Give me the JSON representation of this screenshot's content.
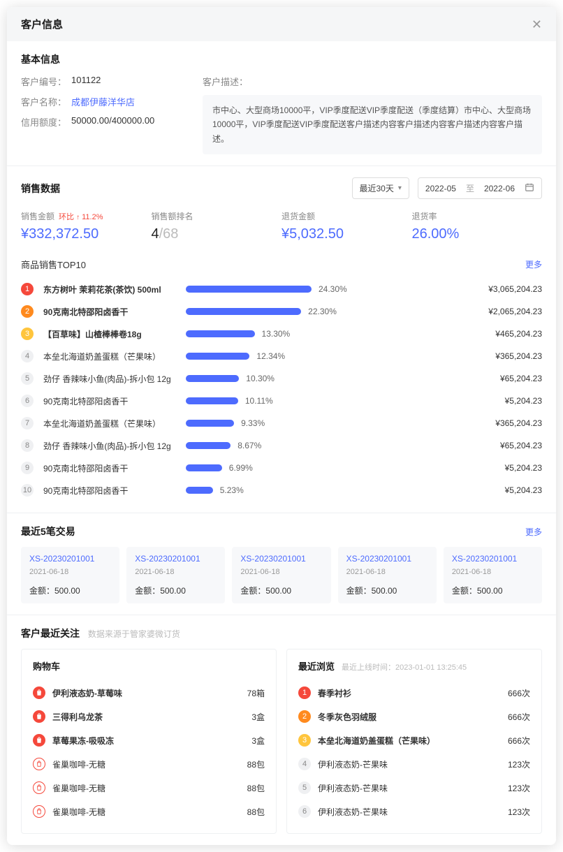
{
  "modal": {
    "title": "客户信息"
  },
  "basic": {
    "title": "基本信息",
    "labels": {
      "id": "客户编号：",
      "name": "客户名称：",
      "credit": "信用额度：",
      "desc": "客户描述："
    },
    "id": "101122",
    "name": "成都伊藤洋华店",
    "credit": "50000.00/400000.00",
    "description": "市中心、大型商场10000平，VIP季度配送VIP季度配送（季度结算）市中心、大型商场10000平，VIP季度配送VIP季度配送客户描述内容客户描述内容客户描述内容客户描述。"
  },
  "sales": {
    "title": "销售数据",
    "period_select": "最近30天",
    "date_from": "2022-05",
    "date_to": "2022-06",
    "date_sep": "至",
    "stats": [
      {
        "label": "销售金额",
        "delta_label": "环比",
        "delta": "11.2%",
        "value": "¥332,372.50",
        "type": "blue"
      },
      {
        "label": "销售额排名",
        "rank": "4",
        "rank_total": "/68",
        "type": "rank"
      },
      {
        "label": "退货金额",
        "value": "¥5,032.50",
        "type": "blue"
      },
      {
        "label": "退货率",
        "value": "26.00%",
        "type": "blue"
      }
    ],
    "top10": {
      "title": "商品销售TOP10",
      "more": "更多",
      "bar_color": "#4d6bfe",
      "max_pct": 24.3,
      "items": [
        {
          "rank": 1,
          "name": "东方树叶 茉莉花茶(茶饮) 500ml",
          "pct": "24.30%",
          "pct_val": 24.3,
          "amount": "¥3,065,204.23",
          "bold": true
        },
        {
          "rank": 2,
          "name": "90克南北特邵阳卤香干",
          "pct": "22.30%",
          "pct_val": 22.3,
          "amount": "¥2,065,204.23",
          "bold": true
        },
        {
          "rank": 3,
          "name": "【百草味】山楂棒棒卷18g",
          "pct": "13.30%",
          "pct_val": 13.3,
          "amount": "¥465,204.23",
          "bold": true
        },
        {
          "rank": 4,
          "name": "本垒北海道奶盖蛋糕（芒果味）",
          "pct": "12.34%",
          "pct_val": 12.34,
          "amount": "¥365,204.23"
        },
        {
          "rank": 5,
          "name": "劲仔 香辣味小鱼(肉品)-拆小包 12g",
          "pct": "10.30%",
          "pct_val": 10.3,
          "amount": "¥65,204.23"
        },
        {
          "rank": 6,
          "name": "90克南北特邵阳卤香干",
          "pct": "10.11%",
          "pct_val": 10.11,
          "amount": "¥5,204.23"
        },
        {
          "rank": 7,
          "name": "本垒北海道奶盖蛋糕（芒果味）",
          "pct": "9.33%",
          "pct_val": 9.33,
          "amount": "¥365,204.23"
        },
        {
          "rank": 8,
          "name": "劲仔 香辣味小鱼(肉品)-拆小包 12g",
          "pct": "8.67%",
          "pct_val": 8.67,
          "amount": "¥65,204.23"
        },
        {
          "rank": 9,
          "name": "90克南北特邵阳卤香干",
          "pct": "6.99%",
          "pct_val": 6.99,
          "amount": "¥5,204.23"
        },
        {
          "rank": 10,
          "name": "90克南北特邵阳卤香干",
          "pct": "5.23%",
          "pct_val": 5.23,
          "amount": "¥5,204.23"
        }
      ]
    }
  },
  "recent_trans": {
    "title": "最近5笔交易",
    "more": "更多",
    "amount_label": "金额：",
    "items": [
      {
        "id": "XS-20230201001",
        "date": "2021-06-18",
        "amount": "500.00"
      },
      {
        "id": "XS-20230201001",
        "date": "2021-06-18",
        "amount": "500.00"
      },
      {
        "id": "XS-20230201001",
        "date": "2021-06-18",
        "amount": "500.00"
      },
      {
        "id": "XS-20230201001",
        "date": "2021-06-18",
        "amount": "500.00"
      },
      {
        "id": "XS-20230201001",
        "date": "2021-06-18",
        "amount": "500.00"
      }
    ]
  },
  "attention": {
    "title": "客户最近关注",
    "source_note": "数据来源于管家婆微订货",
    "cart": {
      "title": "购物车",
      "items": [
        {
          "name": "伊利液态奶-草莓味",
          "qty": "78箱",
          "bold": true,
          "filled": true
        },
        {
          "name": "三得利乌龙茶",
          "qty": "3盒",
          "bold": true,
          "filled": true
        },
        {
          "name": "草莓果冻-吸吸冻",
          "qty": "3盒",
          "bold": true,
          "filled": true
        },
        {
          "name": "雀巢咖啡-无糖",
          "qty": "88包",
          "filled": false
        },
        {
          "name": "雀巢咖啡-无糖",
          "qty": "88包",
          "filled": false
        },
        {
          "name": "雀巢咖啡-无糖",
          "qty": "88包",
          "filled": false
        }
      ]
    },
    "browse": {
      "title": "最近浏览",
      "note_label": "最近上线时间：",
      "note_time": "2023-01-01 13:25:45",
      "items": [
        {
          "rank": 1,
          "name": "春季衬衫",
          "qty": "666次",
          "bold": true
        },
        {
          "rank": 2,
          "name": "冬季灰色羽绒服",
          "qty": "666次",
          "bold": true
        },
        {
          "rank": 3,
          "name": "本垒北海道奶盖蛋糕（芒果味）",
          "qty": "666次",
          "bold": true
        },
        {
          "rank": 4,
          "name": "伊利液态奶-芒果味",
          "qty": "123次"
        },
        {
          "rank": 5,
          "name": "伊利液态奶-芒果味",
          "qty": "123次"
        },
        {
          "rank": 6,
          "name": "伊利液态奶-芒果味",
          "qty": "123次"
        }
      ]
    }
  }
}
